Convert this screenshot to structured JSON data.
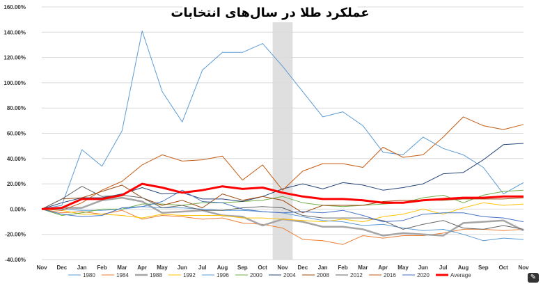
{
  "chart_data": {
    "type": "line",
    "title": "عملکرد طلا در سال‌های انتخابات",
    "x": [
      "Nov",
      "Dec",
      "Jan",
      "Feb",
      "Mar",
      "Apr",
      "May",
      "Jun",
      "Jul",
      "Aug",
      "Sep",
      "Oct",
      "Nov",
      "Dec",
      "Jan",
      "Feb",
      "Mar",
      "Apr",
      "May",
      "Jun",
      "Jul",
      "Aug",
      "Sep",
      "Oct",
      "Nov"
    ],
    "ylim": [
      -40,
      160
    ],
    "y_ticks": [
      "160.00%",
      "140.00%",
      "120.00%",
      "100.00%",
      "80.00%",
      "60.00%",
      "40.00%",
      "20.00%",
      "0.00%",
      "-20.00%",
      "-40.00%"
    ],
    "grid": true,
    "legend_position": "bottom",
    "shaded_category": "Nov",
    "series": [
      {
        "name": "1980",
        "color": "#5b9bd5",
        "width": 1,
        "values": [
          0,
          3,
          47,
          34,
          62,
          141,
          93,
          69,
          110,
          124,
          124,
          131,
          113,
          93,
          73,
          77,
          66,
          45,
          43,
          57,
          48,
          43,
          33,
          12,
          21
        ]
      },
      {
        "name": "1984",
        "color": "#ed7d31",
        "width": 1,
        "values": [
          0,
          -3,
          -2,
          -4,
          -1,
          -8,
          -5,
          -6,
          -8,
          -7,
          -11,
          -12,
          -15,
          -24,
          -25,
          -28,
          -21,
          -23,
          -21,
          -21,
          -19,
          -16,
          -16,
          -17,
          -16
        ]
      },
      {
        "name": "1988",
        "color": "#a5a5a5",
        "width": 2.5,
        "values": [
          0,
          1,
          1,
          7,
          9,
          6,
          -3,
          -2,
          -1,
          -5,
          -6,
          -13,
          -8,
          -10,
          -14,
          -14,
          -16,
          -21,
          -19,
          -20,
          -21,
          -11,
          -10,
          -9,
          -17
        ]
      },
      {
        "name": "1992",
        "color": "#ffc000",
        "width": 1,
        "values": [
          0,
          -1,
          -4,
          -4,
          -5,
          -7,
          -4,
          -5,
          -5,
          -5,
          -7,
          -7,
          -8,
          -9,
          -10,
          -8,
          -10,
          -6,
          -4,
          0,
          -4,
          1,
          5,
          3,
          4
        ]
      },
      {
        "name": "1996",
        "color": "#5b9bd5",
        "width": 1,
        "values": [
          0,
          0,
          -1,
          -1,
          0,
          2,
          1,
          1,
          0,
          -1,
          -1,
          -2,
          -3,
          -6,
          -9,
          -10,
          -13,
          -12,
          -15,
          -17,
          -16,
          -20,
          -25,
          -23,
          -24
        ]
      },
      {
        "name": "2000",
        "color": "#70ad47",
        "width": 1,
        "values": [
          0,
          -5,
          -3,
          0,
          0,
          4,
          4,
          3,
          5,
          5,
          6,
          7,
          10,
          5,
          3,
          2,
          3,
          4,
          5,
          9,
          11,
          5,
          11,
          14,
          15
        ]
      },
      {
        "name": "2004",
        "color": "#264478",
        "width": 1,
        "values": [
          0,
          5,
          9,
          9,
          12,
          17,
          12,
          13,
          8,
          8,
          6,
          10,
          16,
          20,
          16,
          21,
          19,
          15,
          17,
          20,
          28,
          29,
          39,
          51,
          52
        ]
      },
      {
        "name": "2008",
        "color": "#9e480e",
        "width": 1,
        "values": [
          0,
          8,
          9,
          14,
          19,
          9,
          3,
          7,
          1,
          12,
          7,
          10,
          7,
          -3,
          3,
          3,
          3,
          6,
          7,
          7,
          7,
          8,
          8,
          8,
          9
        ]
      },
      {
        "name": "2012",
        "color": "#636363",
        "width": 1,
        "values": [
          0,
          8,
          18,
          10,
          11,
          9,
          1,
          3,
          -1,
          -1,
          1,
          2,
          1,
          -5,
          -7,
          -7,
          -7,
          -9,
          -16,
          -12,
          -9,
          -15,
          -16,
          -13,
          -16
        ]
      },
      {
        "name": "2016",
        "color": "#c55a11",
        "width": 1,
        "values": [
          0,
          -1,
          5,
          15,
          22,
          35,
          43,
          38,
          39,
          42,
          23,
          35,
          15,
          30,
          36,
          36,
          33,
          49,
          41,
          43,
          57,
          73,
          66,
          63,
          67
        ]
      },
      {
        "name": "2020",
        "color": "#4472c4",
        "width": 1,
        "values": [
          0,
          -4,
          -6,
          -5,
          1,
          2,
          6,
          15,
          6,
          5,
          0,
          -2,
          -3,
          -2,
          -3,
          -1,
          -5,
          -10,
          -9,
          -4,
          -3,
          -3,
          -6,
          -7,
          -10
        ]
      },
      {
        "name": "Average",
        "color": "#ff0000",
        "width": 3,
        "values": [
          0,
          1,
          8,
          8,
          11,
          20,
          17,
          13,
          15,
          18,
          16,
          17,
          13,
          10,
          8,
          8,
          7,
          5,
          5,
          7,
          8,
          9,
          9,
          10,
          10
        ]
      }
    ]
  },
  "ui": {
    "corner_icon": "edit-icon"
  }
}
